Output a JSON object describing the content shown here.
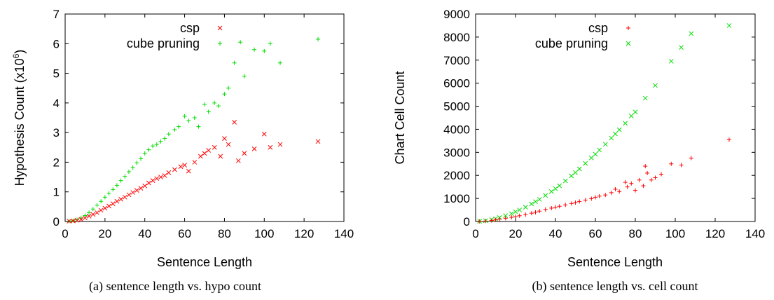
{
  "chart_data": [
    {
      "type": "scatter",
      "caption": "(a) sentence length vs. hypo count",
      "xlabel": "Sentence Length",
      "ylabel_prefix": "Hypothesis Count (x10",
      "ylabel_exp": "6",
      "ylabel_suffix": ")",
      "xlim": [
        0,
        140
      ],
      "ylim": [
        0,
        7
      ],
      "xticks": [
        "0",
        "20",
        "40",
        "60",
        "80",
        "100",
        "120",
        "140"
      ],
      "yticks": [
        "0",
        "1",
        "2",
        "3",
        "4",
        "5",
        "6",
        "7"
      ],
      "legend_position": "top-right",
      "series": [
        {
          "name": "csp",
          "color": "#ff0000",
          "marker": "x",
          "points": [
            [
              2,
              0.01
            ],
            [
              4,
              0.02
            ],
            [
              6,
              0.04
            ],
            [
              8,
              0.07
            ],
            [
              10,
              0.12
            ],
            [
              12,
              0.18
            ],
            [
              14,
              0.24
            ],
            [
              16,
              0.3
            ],
            [
              18,
              0.38
            ],
            [
              20,
              0.45
            ],
            [
              22,
              0.52
            ],
            [
              24,
              0.6
            ],
            [
              26,
              0.68
            ],
            [
              28,
              0.75
            ],
            [
              30,
              0.82
            ],
            [
              32,
              0.9
            ],
            [
              34,
              0.98
            ],
            [
              36,
              1.05
            ],
            [
              38,
              1.12
            ],
            [
              40,
              1.2
            ],
            [
              42,
              1.3
            ],
            [
              44,
              1.38
            ],
            [
              46,
              1.45
            ],
            [
              48,
              1.5
            ],
            [
              50,
              1.55
            ],
            [
              52,
              1.65
            ],
            [
              55,
              1.75
            ],
            [
              58,
              1.85
            ],
            [
              60,
              1.9
            ],
            [
              62,
              1.7
            ],
            [
              65,
              2.0
            ],
            [
              68,
              2.2
            ],
            [
              70,
              2.3
            ],
            [
              72,
              2.4
            ],
            [
              75,
              2.5
            ],
            [
              78,
              2.2
            ],
            [
              80,
              2.8
            ],
            [
              82,
              2.6
            ],
            [
              85,
              3.35
            ],
            [
              87,
              2.05
            ],
            [
              90,
              2.3
            ],
            [
              95,
              2.45
            ],
            [
              100,
              2.95
            ],
            [
              103,
              2.5
            ],
            [
              108,
              2.6
            ],
            [
              127,
              2.7
            ]
          ]
        },
        {
          "name": "cube pruning",
          "color": "#00dd00",
          "marker": "+",
          "points": [
            [
              2,
              0.01
            ],
            [
              4,
              0.03
            ],
            [
              6,
              0.06
            ],
            [
              8,
              0.12
            ],
            [
              10,
              0.2
            ],
            [
              12,
              0.3
            ],
            [
              14,
              0.42
            ],
            [
              16,
              0.55
            ],
            [
              18,
              0.68
            ],
            [
              20,
              0.82
            ],
            [
              22,
              0.95
            ],
            [
              24,
              1.08
            ],
            [
              26,
              1.22
            ],
            [
              28,
              1.38
            ],
            [
              30,
              1.52
            ],
            [
              32,
              1.68
            ],
            [
              34,
              1.82
            ],
            [
              36,
              1.98
            ],
            [
              38,
              2.12
            ],
            [
              40,
              2.3
            ],
            [
              42,
              2.42
            ],
            [
              44,
              2.55
            ],
            [
              46,
              2.6
            ],
            [
              48,
              2.7
            ],
            [
              50,
              2.8
            ],
            [
              52,
              2.95
            ],
            [
              55,
              3.1
            ],
            [
              57,
              3.2
            ],
            [
              60,
              3.55
            ],
            [
              62,
              3.4
            ],
            [
              65,
              3.5
            ],
            [
              67,
              3.2
            ],
            [
              70,
              3.95
            ],
            [
              72,
              3.7
            ],
            [
              75,
              4.0
            ],
            [
              77,
              3.9
            ],
            [
              80,
              4.3
            ],
            [
              82,
              4.5
            ],
            [
              85,
              5.35
            ],
            [
              88,
              6.05
            ],
            [
              90,
              4.9
            ],
            [
              95,
              5.8
            ],
            [
              100,
              5.75
            ],
            [
              103,
              6.0
            ],
            [
              108,
              5.35
            ],
            [
              127,
              6.15
            ]
          ]
        }
      ]
    },
    {
      "type": "scatter",
      "caption": "(b) sentence length vs. cell count",
      "xlabel": "Sentence Length",
      "ylabel": "Chart Cell Count",
      "xlim": [
        0,
        140
      ],
      "ylim": [
        0,
        9000
      ],
      "xticks": [
        "0",
        "20",
        "40",
        "60",
        "80",
        "100",
        "120",
        "140"
      ],
      "yticks": [
        "0",
        "1000",
        "2000",
        "3000",
        "4000",
        "5000",
        "6000",
        "7000",
        "8000",
        "9000"
      ],
      "legend_position": "top-right",
      "series": [
        {
          "name": "csp",
          "color": "#ff0000",
          "marker": "+",
          "points": [
            [
              2,
              5
            ],
            [
              5,
              20
            ],
            [
              8,
              45
            ],
            [
              10,
              70
            ],
            [
              12,
              100
            ],
            [
              15,
              140
            ],
            [
              18,
              180
            ],
            [
              20,
              210
            ],
            [
              22,
              250
            ],
            [
              25,
              300
            ],
            [
              28,
              360
            ],
            [
              30,
              400
            ],
            [
              32,
              450
            ],
            [
              35,
              520
            ],
            [
              38,
              580
            ],
            [
              40,
              620
            ],
            [
              42,
              660
            ],
            [
              45,
              720
            ],
            [
              48,
              780
            ],
            [
              50,
              820
            ],
            [
              52,
              870
            ],
            [
              55,
              930
            ],
            [
              58,
              990
            ],
            [
              60,
              1050
            ],
            [
              62,
              1100
            ],
            [
              65,
              1150
            ],
            [
              68,
              1250
            ],
            [
              70,
              1400
            ],
            [
              72,
              1300
            ],
            [
              75,
              1700
            ],
            [
              76,
              1500
            ],
            [
              78,
              1650
            ],
            [
              80,
              1350
            ],
            [
              82,
              1800
            ],
            [
              84,
              1550
            ],
            [
              85,
              2400
            ],
            [
              86,
              2100
            ],
            [
              88,
              1800
            ],
            [
              90,
              1900
            ],
            [
              93,
              2050
            ],
            [
              98,
              2500
            ],
            [
              103,
              2450
            ],
            [
              108,
              2750
            ],
            [
              127,
              3550
            ]
          ]
        },
        {
          "name": "cube pruning",
          "color": "#00dd00",
          "marker": "x",
          "points": [
            [
              2,
              8
            ],
            [
              5,
              35
            ],
            [
              8,
              80
            ],
            [
              10,
              120
            ],
            [
              12,
              170
            ],
            [
              15,
              250
            ],
            [
              18,
              340
            ],
            [
              20,
              420
            ],
            [
              22,
              500
            ],
            [
              25,
              620
            ],
            [
              28,
              760
            ],
            [
              30,
              860
            ],
            [
              32,
              960
            ],
            [
              35,
              1130
            ],
            [
              38,
              1300
            ],
            [
              40,
              1420
            ],
            [
              42,
              1550
            ],
            [
              45,
              1760
            ],
            [
              48,
              1980
            ],
            [
              50,
              2120
            ],
            [
              52,
              2280
            ],
            [
              55,
              2520
            ],
            [
              58,
              2760
            ],
            [
              60,
              2920
            ],
            [
              62,
              3100
            ],
            [
              65,
              3350
            ],
            [
              68,
              3620
            ],
            [
              70,
              3800
            ],
            [
              72,
              3980
            ],
            [
              75,
              4260
            ],
            [
              78,
              4580
            ],
            [
              80,
              4750
            ],
            [
              85,
              5350
            ],
            [
              90,
              5900
            ],
            [
              98,
              6950
            ],
            [
              103,
              7550
            ],
            [
              108,
              8150
            ],
            [
              127,
              8500
            ]
          ]
        }
      ]
    }
  ]
}
